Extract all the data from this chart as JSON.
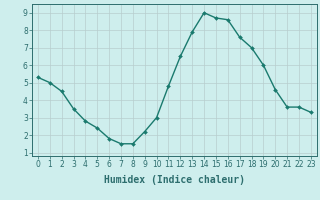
{
  "x": [
    0,
    1,
    2,
    3,
    4,
    5,
    6,
    7,
    8,
    9,
    10,
    11,
    12,
    13,
    14,
    15,
    16,
    17,
    18,
    19,
    20,
    21,
    22,
    23
  ],
  "y": [
    5.3,
    5.0,
    4.5,
    3.5,
    2.8,
    2.4,
    1.8,
    1.5,
    1.5,
    2.2,
    3.0,
    4.8,
    6.5,
    7.9,
    9.0,
    8.7,
    8.6,
    7.6,
    7.0,
    6.0,
    4.6,
    3.6,
    3.6,
    3.3
  ],
  "line_color": "#1a7a6e",
  "marker": "D",
  "marker_size": 2.0,
  "bg_color": "#ceeeed",
  "grid_color": "#b8cece",
  "xlabel": "Humidex (Indice chaleur)",
  "xlabel_fontsize": 7,
  "xlim": [
    -0.5,
    23.5
  ],
  "ylim": [
    0.8,
    9.5
  ],
  "yticks": [
    1,
    2,
    3,
    4,
    5,
    6,
    7,
    8,
    9
  ],
  "xticks": [
    0,
    1,
    2,
    3,
    4,
    5,
    6,
    7,
    8,
    9,
    10,
    11,
    12,
    13,
    14,
    15,
    16,
    17,
    18,
    19,
    20,
    21,
    22,
    23
  ],
  "tick_fontsize": 5.5,
  "axis_color": "#2d6e6e",
  "line_width": 1.0
}
